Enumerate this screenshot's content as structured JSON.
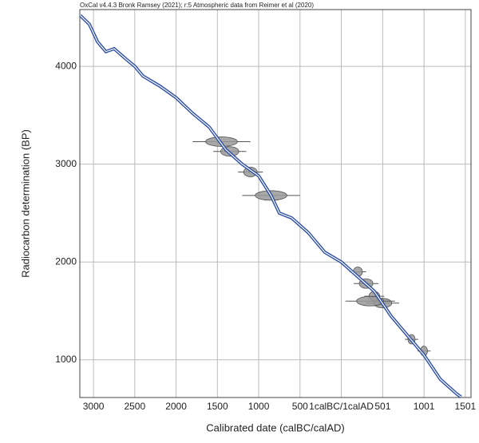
{
  "chart_data": {
    "type": "line",
    "title": "OxCal v4.4.3 Bronk Ramsey (2021); r:5 Atmospheric data from Reimer et al (2020)",
    "xlabel": "Calibrated date (calBC/calAD)",
    "ylabel": "Radiocarbon determination (BP)",
    "xlim": [
      -3165,
      1570
    ],
    "ylim": [
      615,
      4580
    ],
    "xticks": [
      {
        "value": -3000,
        "label": "3000"
      },
      {
        "value": -2500,
        "label": "2500"
      },
      {
        "value": -2000,
        "label": "2000"
      },
      {
        "value": -1500,
        "label": "1500"
      },
      {
        "value": -1000,
        "label": "1000"
      },
      {
        "value": -500,
        "label": "500"
      },
      {
        "value": 0,
        "label": "1calBC/1calAD"
      },
      501,
      1001,
      1501
    ],
    "yticks": [
      1000,
      2000,
      3000,
      4000
    ],
    "grid": true,
    "series": [
      {
        "color": "#2f4f9f",
        "x": [
          -3160,
          -3050,
          -2950,
          -2850,
          -2750,
          -2600,
          -2500,
          -2400,
          -2200,
          -2000,
          -1800,
          -1600,
          -1400,
          -1200,
          -1000,
          -850,
          -750,
          -600,
          -400,
          -200,
          0,
          200,
          400,
          600,
          800,
          1000,
          1200,
          1400,
          1450
        ],
        "values": [
          4520,
          4430,
          4250,
          4150,
          4180,
          4070,
          4000,
          3900,
          3800,
          3680,
          3520,
          3380,
          3150,
          3000,
          2880,
          2680,
          2500,
          2450,
          2300,
          2100,
          2000,
          1850,
          1700,
          1450,
          1250,
          1050,
          800,
          650,
          620
        ]
      }
    ],
    "dates": {
      "color": "#999999",
      "x": [
        -1450,
        -1350,
        -1100,
        -850,
        200,
        300,
        400,
        500,
        350,
        850,
        1000
      ],
      "values": [
        3230,
        3130,
        2920,
        2680,
        1900,
        1780,
        1650,
        1580,
        1600,
        1210,
        1090
      ],
      "xerr": [
        350,
        200,
        150,
        350,
        100,
        150,
        120,
        200,
        300,
        80,
        80
      ]
    }
  }
}
